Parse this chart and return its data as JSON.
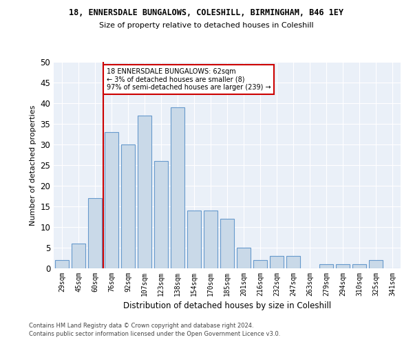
{
  "title": "18, ENNERSDALE BUNGALOWS, COLESHILL, BIRMINGHAM, B46 1EY",
  "subtitle": "Size of property relative to detached houses in Coleshill",
  "xlabel": "Distribution of detached houses by size in Coleshill",
  "ylabel": "Number of detached properties",
  "categories": [
    "29sqm",
    "45sqm",
    "60sqm",
    "76sqm",
    "92sqm",
    "107sqm",
    "123sqm",
    "138sqm",
    "154sqm",
    "170sqm",
    "185sqm",
    "201sqm",
    "216sqm",
    "232sqm",
    "247sqm",
    "263sqm",
    "279sqm",
    "294sqm",
    "310sqm",
    "325sqm",
    "341sqm"
  ],
  "values": [
    2,
    6,
    17,
    33,
    30,
    37,
    26,
    39,
    14,
    14,
    12,
    5,
    2,
    3,
    3,
    0,
    1,
    1,
    1,
    2,
    0
  ],
  "bar_color": "#c9d9e8",
  "bar_edgecolor": "#6699cc",
  "vline_x_index": 2.5,
  "vline_color": "#cc0000",
  "annotation_text": "18 ENNERSDALE BUNGALOWS: 62sqm\n← 3% of detached houses are smaller (8)\n97% of semi-detached houses are larger (239) →",
  "annotation_box_edgecolor": "#cc0000",
  "ylim": [
    0,
    50
  ],
  "yticks": [
    0,
    5,
    10,
    15,
    20,
    25,
    30,
    35,
    40,
    45,
    50
  ],
  "bg_color": "#eaf0f8",
  "footer_line1": "Contains HM Land Registry data © Crown copyright and database right 2024.",
  "footer_line2": "Contains public sector information licensed under the Open Government Licence v3.0."
}
